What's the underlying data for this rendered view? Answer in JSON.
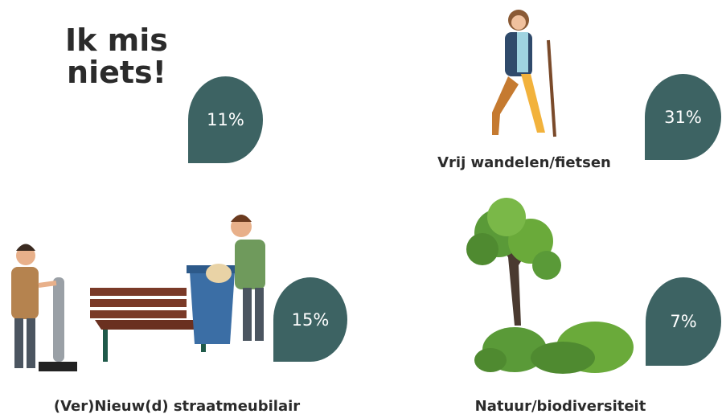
{
  "title": "Ik mis niets!",
  "items": [
    {
      "label": "",
      "percentage": "11%"
    },
    {
      "label": "Vrij wandelen/fietsen",
      "percentage": "31%"
    },
    {
      "label": "(Ver)Nieuw(d) straatmeubilair",
      "percentage": "15%"
    },
    {
      "label": "Natuur/biodiversiteit",
      "percentage": "7%"
    }
  ]
}
